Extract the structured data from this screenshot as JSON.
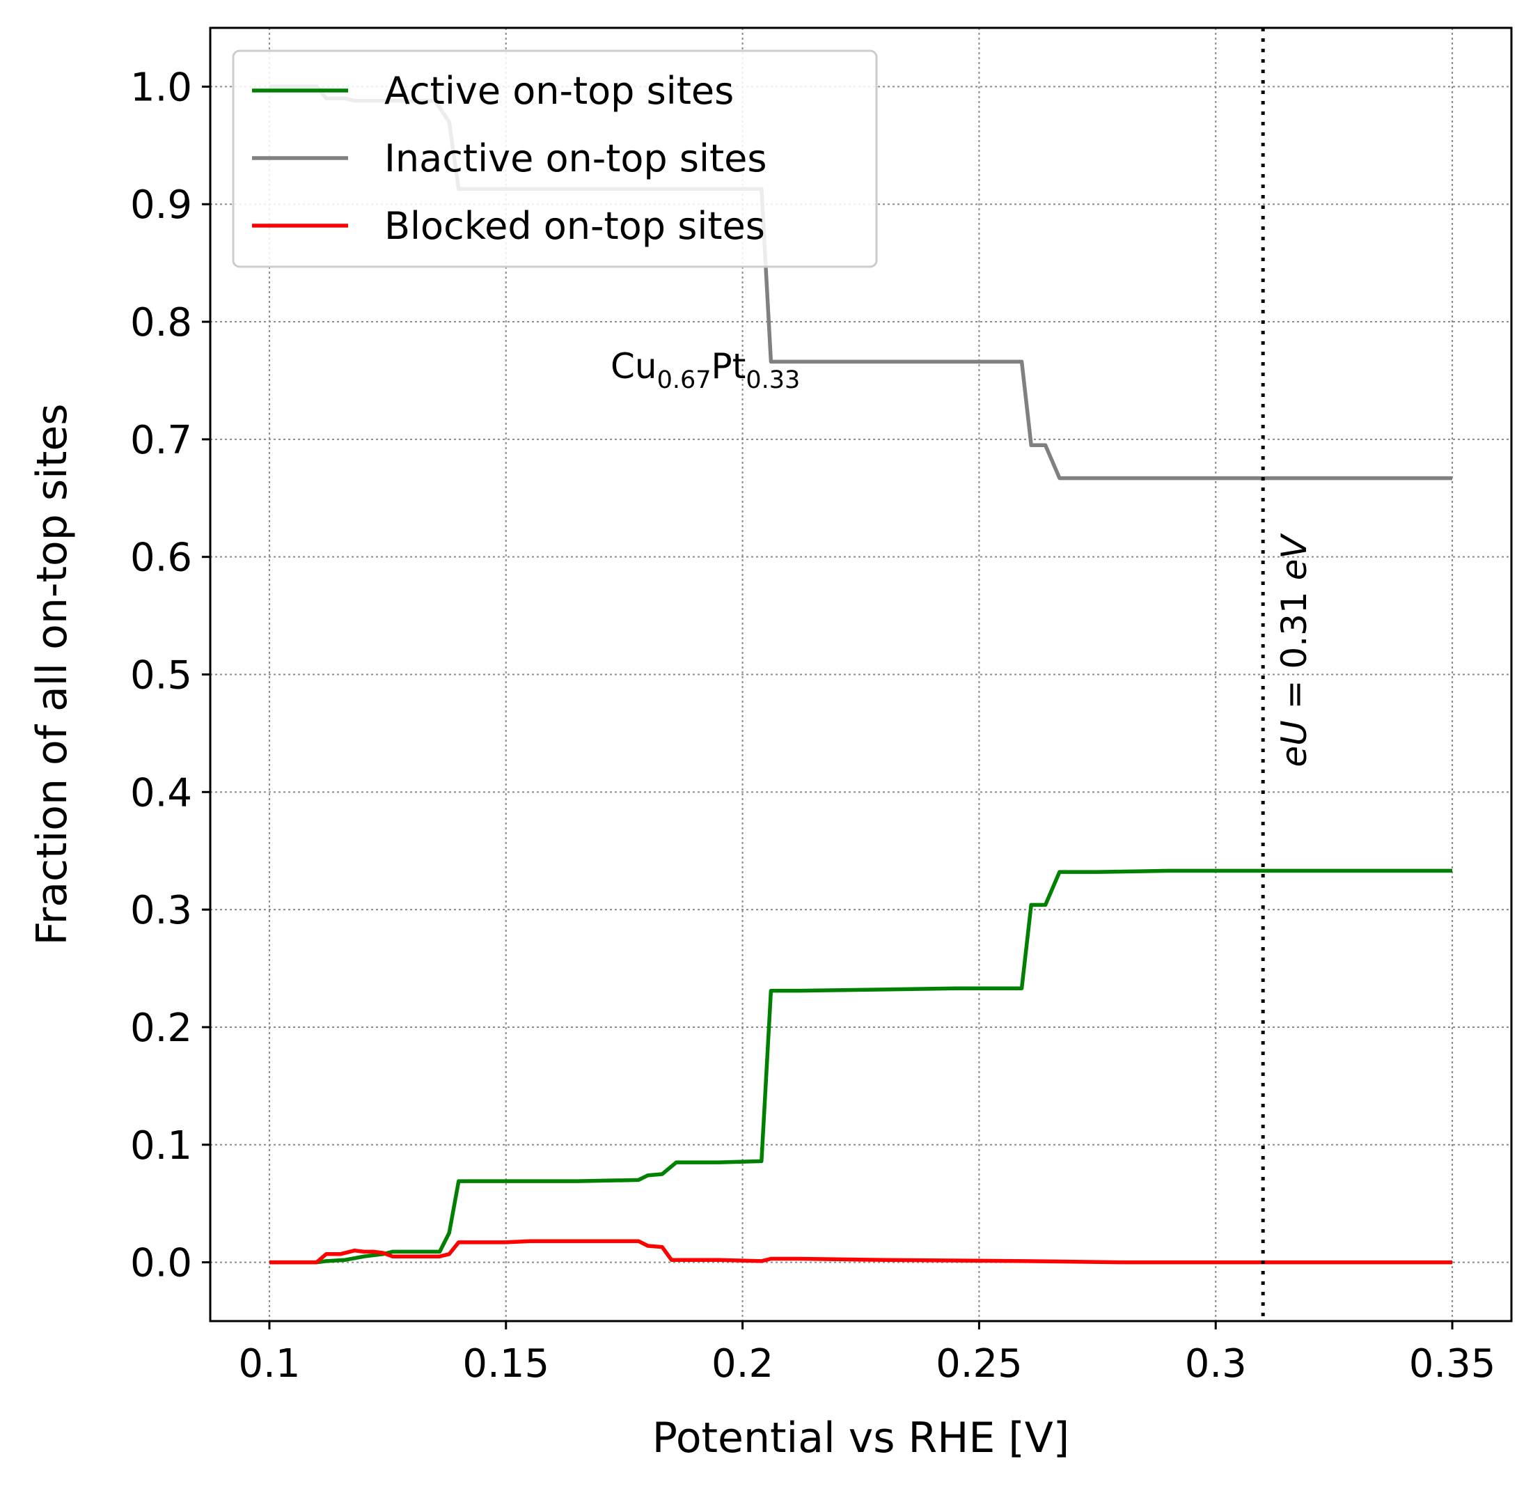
{
  "chart_data": {
    "type": "line",
    "xlabel": "Potential vs RHE [V]",
    "ylabel": "Fraction of all on-top sites",
    "xlim": [
      0.0875,
      0.3625
    ],
    "ylim": [
      -0.05,
      1.05
    ],
    "x_ticks": [
      {
        "value": 0.1,
        "label": "0.1"
      },
      {
        "value": 0.15,
        "label": "0.15"
      },
      {
        "value": 0.2,
        "label": "0.2"
      },
      {
        "value": 0.25,
        "label": "0.25"
      },
      {
        "value": 0.3,
        "label": "0.3"
      },
      {
        "value": 0.35,
        "label": "0.35"
      }
    ],
    "y_ticks": [
      {
        "value": 0.0,
        "label": "0.0"
      },
      {
        "value": 0.1,
        "label": "0.1"
      },
      {
        "value": 0.2,
        "label": "0.2"
      },
      {
        "value": 0.3,
        "label": "0.3"
      },
      {
        "value": 0.4,
        "label": "0.4"
      },
      {
        "value": 0.5,
        "label": "0.5"
      },
      {
        "value": 0.6,
        "label": "0.6"
      },
      {
        "value": 0.7,
        "label": "0.7"
      },
      {
        "value": 0.8,
        "label": "0.8"
      },
      {
        "value": 0.9,
        "label": "0.9"
      },
      {
        "value": 1.0,
        "label": "1.0"
      }
    ],
    "grid": true,
    "legend_position": "top-left",
    "series": [
      {
        "name": "Active on-top sites",
        "color": "#008000",
        "points": [
          [
            0.1,
            0.0
          ],
          [
            0.11,
            0.0
          ],
          [
            0.112,
            0.001
          ],
          [
            0.116,
            0.002
          ],
          [
            0.12,
            0.005
          ],
          [
            0.124,
            0.007
          ],
          [
            0.126,
            0.009
          ],
          [
            0.136,
            0.009
          ],
          [
            0.138,
            0.025
          ],
          [
            0.14,
            0.069
          ],
          [
            0.155,
            0.069
          ],
          [
            0.165,
            0.069
          ],
          [
            0.178,
            0.07
          ],
          [
            0.18,
            0.074
          ],
          [
            0.183,
            0.075
          ],
          [
            0.186,
            0.085
          ],
          [
            0.195,
            0.085
          ],
          [
            0.204,
            0.086
          ],
          [
            0.206,
            0.231
          ],
          [
            0.212,
            0.231
          ],
          [
            0.23,
            0.232
          ],
          [
            0.245,
            0.233
          ],
          [
            0.259,
            0.233
          ],
          [
            0.261,
            0.304
          ],
          [
            0.264,
            0.304
          ],
          [
            0.267,
            0.332
          ],
          [
            0.275,
            0.332
          ],
          [
            0.29,
            0.333
          ],
          [
            0.35,
            0.333
          ]
        ]
      },
      {
        "name": "Inactive on-top sites",
        "color": "#808080",
        "points": [
          [
            0.1,
            1.0
          ],
          [
            0.11,
            1.0
          ],
          [
            0.112,
            0.99
          ],
          [
            0.116,
            0.99
          ],
          [
            0.118,
            0.988
          ],
          [
            0.124,
            0.988
          ],
          [
            0.135,
            0.988
          ],
          [
            0.138,
            0.97
          ],
          [
            0.14,
            0.913
          ],
          [
            0.155,
            0.913
          ],
          [
            0.18,
            0.913
          ],
          [
            0.2,
            0.913
          ],
          [
            0.204,
            0.913
          ],
          [
            0.206,
            0.766
          ],
          [
            0.215,
            0.766
          ],
          [
            0.259,
            0.766
          ],
          [
            0.261,
            0.695
          ],
          [
            0.264,
            0.695
          ],
          [
            0.267,
            0.667
          ],
          [
            0.3,
            0.667
          ],
          [
            0.35,
            0.667
          ]
        ]
      },
      {
        "name": "Blocked on-top sites",
        "color": "#ff0000",
        "points": [
          [
            0.1,
            0.0
          ],
          [
            0.11,
            0.0
          ],
          [
            0.112,
            0.007
          ],
          [
            0.115,
            0.007
          ],
          [
            0.118,
            0.01
          ],
          [
            0.12,
            0.009
          ],
          [
            0.122,
            0.009
          ],
          [
            0.124,
            0.008
          ],
          [
            0.126,
            0.005
          ],
          [
            0.136,
            0.005
          ],
          [
            0.138,
            0.007
          ],
          [
            0.14,
            0.017
          ],
          [
            0.15,
            0.017
          ],
          [
            0.155,
            0.018
          ],
          [
            0.165,
            0.018
          ],
          [
            0.178,
            0.018
          ],
          [
            0.18,
            0.014
          ],
          [
            0.183,
            0.013
          ],
          [
            0.185,
            0.002
          ],
          [
            0.195,
            0.002
          ],
          [
            0.204,
            0.001
          ],
          [
            0.206,
            0.003
          ],
          [
            0.212,
            0.003
          ],
          [
            0.23,
            0.002
          ],
          [
            0.26,
            0.001
          ],
          [
            0.28,
            0.0
          ],
          [
            0.35,
            0.0
          ]
        ]
      }
    ],
    "vline": {
      "x": 0.31,
      "label_prefix": "eU",
      "label_value": " = 0.31 ",
      "label_unit": "eV"
    },
    "annotation": {
      "base1": "Cu",
      "sub1": "0.67",
      "base2": "Pt",
      "sub2": "0.33"
    }
  }
}
